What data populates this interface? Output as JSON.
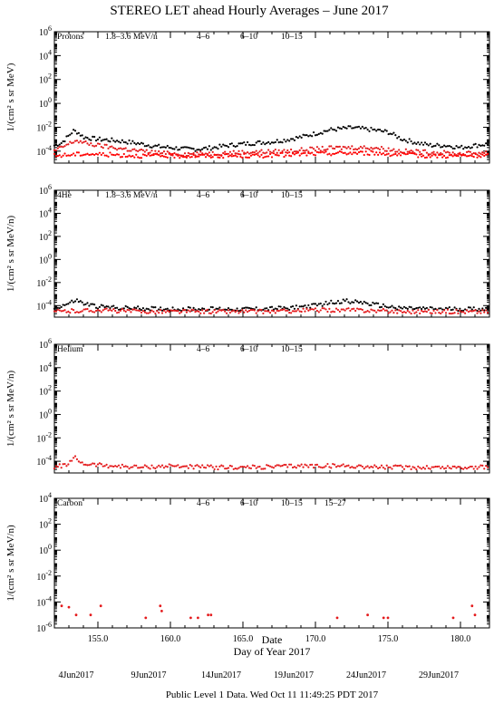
{
  "title": "STEREO LET ahead Hourly Averages – June 2017",
  "footer": "Public Level 1 Data. Wed Oct 11 11:49:25 PDT 2017",
  "colors": {
    "1.8-3.6 MeV/n": "#000000",
    "4-6": "#e41a1c",
    "6-10": "#ff0000",
    "10-15": "#888888",
    "15-27": "#0000ff"
  },
  "chart_data": [
    {
      "type": "scatter",
      "species": "Protons",
      "ylabel": "1/(cm² s sr MeV)",
      "yscale": "log",
      "ylim": [
        1e-05,
        1000000
      ],
      "yticks": [
        "10^6",
        "10^4",
        "10^2",
        "10^0",
        "10^-2",
        "10^-4"
      ],
      "xlim": [
        152,
        182
      ],
      "legend": [
        "1.8–3.6 MeV/n",
        "4–6",
        "6–10",
        "10–15"
      ],
      "series": [
        {
          "name": "1.8–3.6 MeV/n",
          "x": [
            152,
            152.5,
            153,
            153.3,
            153.6,
            154,
            154.5,
            155,
            156,
            157,
            158,
            159,
            160,
            161,
            162,
            163,
            164,
            165,
            166,
            167,
            168,
            169,
            170,
            171,
            172,
            172.5,
            173,
            174,
            175,
            176,
            177,
            178,
            179,
            180,
            181,
            182
          ],
          "y": [
            0.0003,
            0.0005,
            0.002,
            0.005,
            0.004,
            0.0015,
            0.0012,
            0.001,
            0.0008,
            0.0006,
            0.0004,
            0.00025,
            0.0002,
            0.00015,
            0.00015,
            0.0002,
            0.0003,
            0.0004,
            0.0005,
            0.0006,
            0.0009,
            0.0015,
            0.003,
            0.006,
            0.008,
            0.009,
            0.008,
            0.006,
            0.004,
            0.001,
            0.0005,
            0.0003,
            0.0003,
            0.0002,
            0.0003,
            0.0004
          ]
        },
        {
          "name": "4–6",
          "x": [
            152,
            153,
            153.5,
            154,
            155,
            156,
            158,
            160,
            162,
            165,
            168,
            170,
            172,
            174,
            176,
            178,
            180,
            182
          ],
          "y": [
            0.0001,
            0.0004,
            0.0008,
            0.0005,
            0.0003,
            0.0002,
            0.0001,
            6e-05,
            6e-05,
            8e-05,
            0.0001,
            0.00015,
            0.0002,
            0.0002,
            0.0001,
            8e-05,
            6e-05,
            8e-05
          ]
        },
        {
          "name": "6–10",
          "x": [
            152,
            154,
            156,
            158,
            160,
            162,
            164,
            166,
            168,
            170,
            172,
            174,
            176,
            178,
            180,
            182
          ],
          "y": [
            4e-05,
            6e-05,
            5e-05,
            4e-05,
            4e-05,
            4e-05,
            4e-05,
            4e-05,
            5e-05,
            6e-05,
            7e-05,
            7e-05,
            5e-05,
            4e-05,
            4e-05,
            4e-05
          ]
        }
      ]
    },
    {
      "type": "scatter",
      "species": "4He",
      "ylabel": "1/(cm² s sr MeV/n)",
      "yscale": "log",
      "ylim": [
        1e-05,
        1000000
      ],
      "yticks": [
        "10^6",
        "10^4",
        "10^2",
        "10^0",
        "10^-2",
        "10^-4"
      ],
      "xlim": [
        152,
        182
      ],
      "legend": [
        "1.8–3.6 MeV/n",
        "4–6",
        "6–10",
        "10–15"
      ],
      "series": [
        {
          "name": "1.8–3.6 MeV/n",
          "x": [
            152,
            153,
            153.5,
            154,
            155,
            157,
            160,
            163,
            166,
            168,
            170,
            171,
            172,
            173,
            174,
            175,
            176,
            178,
            180,
            182
          ],
          "y": [
            6e-05,
            0.00015,
            0.0003,
            0.00015,
            8e-05,
            6e-05,
            5e-05,
            5e-05,
            5e-05,
            6e-05,
            0.0001,
            0.00018,
            0.00025,
            0.0002,
            0.00012,
            8e-05,
            6e-05,
            5e-05,
            5e-05,
            5e-05
          ]
        },
        {
          "name": "4–6",
          "x": [
            152,
            155,
            158,
            161,
            164,
            167,
            170,
            173,
            176,
            179,
            182
          ],
          "y": [
            3e-05,
            4e-05,
            3e-05,
            3e-05,
            3e-05,
            3e-05,
            4e-05,
            4e-05,
            3e-05,
            3e-05,
            3e-05
          ]
        }
      ]
    },
    {
      "type": "scatter",
      "species": "Helium",
      "ylabel": "1/(cm² s sr MeV/n)",
      "yscale": "log",
      "ylim": [
        1e-05,
        1000000
      ],
      "yticks": [
        "10^6",
        "10^4",
        "10^2",
        "10^0",
        "10^-2",
        "10^-4"
      ],
      "xlim": [
        152,
        182
      ],
      "legend": [
        "4–6",
        "6–10",
        "10–15"
      ],
      "series": [
        {
          "name": "4–6",
          "x": [
            152,
            153,
            153.4,
            154,
            156,
            158,
            160,
            163,
            166,
            169,
            172,
            175,
            178,
            181,
            182
          ],
          "y": [
            3e-05,
            6e-05,
            0.0002,
            6e-05,
            4e-05,
            3e-05,
            4e-05,
            3e-05,
            3e-05,
            4e-05,
            4e-05,
            3e-05,
            3e-05,
            3e-05,
            3e-05
          ]
        }
      ]
    },
    {
      "type": "scatter",
      "species": "Carbon",
      "ylabel": "1/(cm² s sr MeV/n)",
      "yscale": "log",
      "ylim": [
        1e-06,
        10000
      ],
      "yticks": [
        "10^4",
        "10^2",
        "10^0",
        "10^-2",
        "10^-4",
        "10^-6"
      ],
      "xlim": [
        152,
        182
      ],
      "legend": [
        "4–6",
        "6–10",
        "10–15",
        "15–27"
      ],
      "series": [
        {
          "name": "4–6",
          "x": [
            152.5,
            153,
            153.5,
            154.5,
            155.2,
            158.3,
            159.3,
            159.4,
            161.4,
            161.9,
            162.6,
            162.8,
            171.5,
            173.6,
            174.7,
            175,
            179.5,
            180.8,
            181
          ],
          "y": [
            5e-05,
            4e-05,
            1e-05,
            1e-05,
            5e-05,
            6e-06,
            5e-05,
            2e-05,
            6e-06,
            6e-06,
            1e-05,
            1e-05,
            6e-06,
            1e-05,
            6e-06,
            6e-06,
            6e-06,
            5e-05,
            1e-05
          ]
        }
      ]
    }
  ],
  "xaxis": {
    "label": "Day of Year 2017",
    "ticks": [
      "155.0",
      "160.0",
      "165.0",
      "170.0",
      "175.0",
      "180.0"
    ],
    "date_label": "Date",
    "dates": [
      "4Jun2017",
      "9Jun2017",
      "14Jun2017",
      "19Jun2017",
      "24Jun2017",
      "29Jun2017"
    ]
  }
}
